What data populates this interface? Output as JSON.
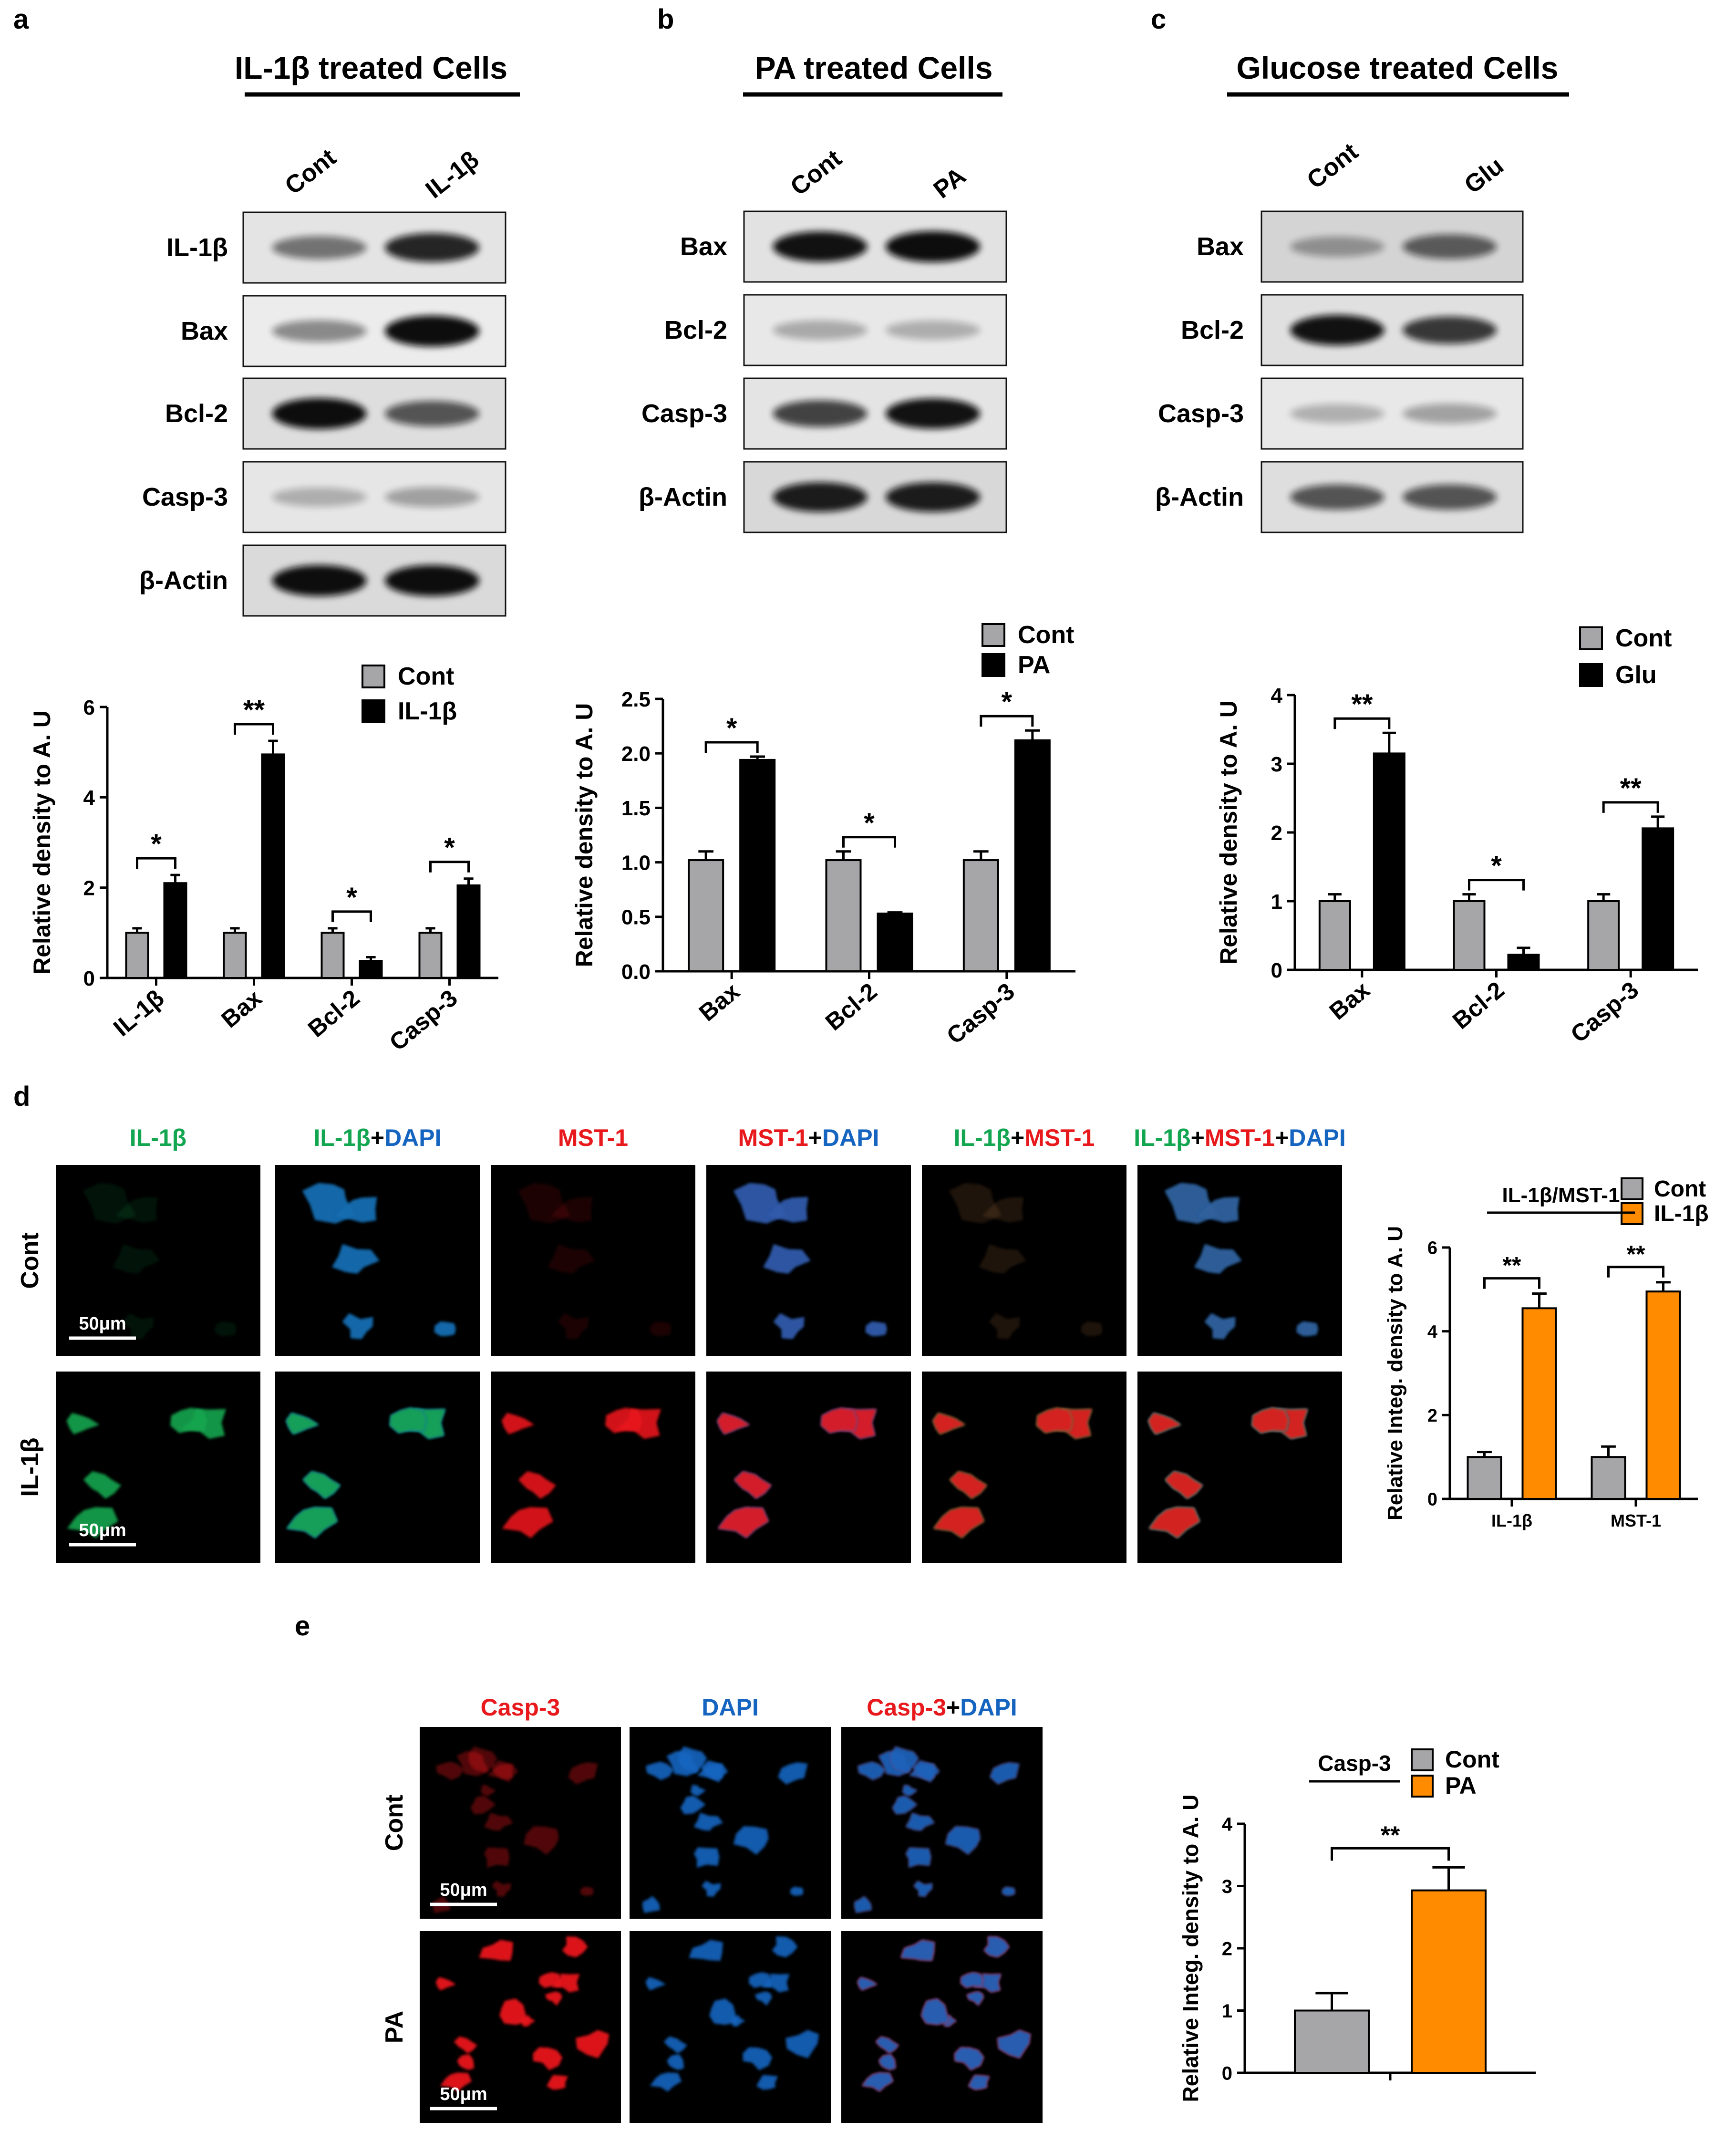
{
  "panel_letters": [
    "a",
    "b",
    "c",
    "d",
    "e"
  ],
  "blots": [
    {
      "title": "IL-1β treated Cells",
      "lanes": [
        "Cont",
        "IL-1β"
      ],
      "bands": [
        "IL-1β",
        "Bax",
        "Bcl-2",
        "Casp-3",
        "β-Actin"
      ]
    },
    {
      "title": "PA treated Cells",
      "lanes": [
        "Cont",
        "PA"
      ],
      "bands": [
        "Bax",
        "Bcl-2",
        "Casp-3",
        "β-Actin"
      ]
    },
    {
      "title": "Glucose treated Cells",
      "lanes": [
        "Cont",
        "Glu"
      ],
      "bands": [
        "Bax",
        "Bcl-2",
        "Casp-3",
        "β-Actin"
      ]
    }
  ],
  "colors": {
    "cont_gray": "#a6a6a8",
    "treat_black": "#000000",
    "treat_orange": "#ff8b00",
    "green": "#12a650",
    "red": "#e8191c",
    "blue": "#1565c0"
  },
  "panel_d": {
    "columns": [
      [
        {
          "t": "IL-1β",
          "c": "green"
        }
      ],
      [
        {
          "t": "IL-1β",
          "c": "green"
        },
        {
          "t": "+",
          "c": "black"
        },
        {
          "t": "DAPI",
          "c": "blue"
        }
      ],
      [
        {
          "t": "MST-1",
          "c": "red"
        }
      ],
      [
        {
          "t": "MST-1",
          "c": "red"
        },
        {
          "t": "+",
          "c": "black"
        },
        {
          "t": "DAPI",
          "c": "blue"
        }
      ],
      [
        {
          "t": "IL-1β",
          "c": "green"
        },
        {
          "t": "+",
          "c": "black"
        },
        {
          "t": "MST-1",
          "c": "red"
        }
      ],
      [
        {
          "t": "IL-1β",
          "c": "green"
        },
        {
          "t": "+",
          "c": "black"
        },
        {
          "t": "MST-1",
          "c": "red"
        },
        {
          "t": "+",
          "c": "black"
        },
        {
          "t": "DAPI",
          "c": "blue"
        }
      ]
    ],
    "rows": [
      "Cont",
      "IL-1β"
    ],
    "scale_bar": "50μm"
  },
  "panel_e": {
    "columns": [
      [
        {
          "t": "Casp-3",
          "c": "red"
        }
      ],
      [
        {
          "t": "DAPI",
          "c": "blue"
        }
      ],
      [
        {
          "t": "Casp-3",
          "c": "red"
        },
        {
          "t": "+",
          "c": "black"
        },
        {
          "t": "DAPI",
          "c": "blue"
        }
      ]
    ],
    "rows": [
      "Cont",
      "PA"
    ],
    "scale_bar": "50μm"
  },
  "chart_data": [
    {
      "type": "bar",
      "categories": [
        "IL-1β",
        "Bax",
        "Bcl-2",
        "Casp-3"
      ],
      "series": [
        {
          "name": "Cont",
          "values": [
            1.0,
            1.0,
            1.0,
            1.0
          ],
          "errors": [
            0.1,
            0.1,
            0.1,
            0.1
          ]
        },
        {
          "name": "IL-1β",
          "values": [
            2.1,
            4.95,
            0.38,
            2.05
          ],
          "errors": [
            0.18,
            0.3,
            0.08,
            0.15
          ]
        }
      ],
      "significance": [
        "*",
        "**",
        "*",
        "*"
      ],
      "ylabel": "Relative density to A. U",
      "ylim": [
        0,
        6
      ],
      "yticks": [
        "0",
        "2",
        "4",
        "6"
      ]
    },
    {
      "type": "bar",
      "categories": [
        "Bax",
        "Bcl-2",
        "Casp-3"
      ],
      "series": [
        {
          "name": "Cont",
          "values": [
            1.02,
            1.02,
            1.02
          ],
          "errors": [
            0.08,
            0.08,
            0.08
          ]
        },
        {
          "name": "PA",
          "values": [
            1.94,
            0.53,
            2.12
          ],
          "errors": [
            0.03,
            0.01,
            0.09
          ]
        }
      ],
      "significance": [
        "*",
        "*",
        "*"
      ],
      "ylabel": "Relative density to A. U",
      "ylim": [
        0,
        2.5
      ],
      "yticks": [
        "0.0",
        "0.5",
        "1.0",
        "1.5",
        "2.0",
        "2.5"
      ]
    },
    {
      "type": "bar",
      "categories": [
        "Bax",
        "Bcl-2",
        "Casp-3"
      ],
      "series": [
        {
          "name": "Cont",
          "values": [
            1.0,
            1.0,
            1.0
          ],
          "errors": [
            0.1,
            0.1,
            0.1
          ]
        },
        {
          "name": "Glu",
          "values": [
            3.15,
            0.22,
            2.06
          ],
          "errors": [
            0.3,
            0.1,
            0.17
          ]
        }
      ],
      "significance": [
        "**",
        "*",
        "**"
      ],
      "ylabel": "Relative density to A. U",
      "ylim": [
        0,
        4
      ],
      "yticks": [
        "0",
        "1",
        "2",
        "3",
        "4"
      ]
    },
    {
      "type": "bar",
      "title": "IL-1β/MST-1",
      "categories": [
        "IL-1β",
        "MST-1"
      ],
      "series": [
        {
          "name": "Cont",
          "values": [
            1.0,
            1.0
          ],
          "errors": [
            0.12,
            0.25
          ]
        },
        {
          "name": "IL-1β",
          "values": [
            4.55,
            4.95
          ],
          "errors": [
            0.35,
            0.22
          ]
        }
      ],
      "significance": [
        "**",
        "**"
      ],
      "ylabel": "Relative Integ. density to A. U",
      "ylim": [
        0,
        6
      ],
      "yticks": [
        "0",
        "2",
        "4",
        "6"
      ]
    },
    {
      "type": "bar",
      "title": "Casp-3",
      "categories": [
        ""
      ],
      "series": [
        {
          "name": "Cont",
          "values": [
            1.0
          ],
          "errors": [
            0.28
          ]
        },
        {
          "name": "PA",
          "values": [
            2.93
          ],
          "errors": [
            0.37
          ]
        }
      ],
      "significance": [
        "**"
      ],
      "ylabel": "Relative Integ. density to A. U",
      "ylim": [
        0,
        4
      ],
      "yticks": [
        "0",
        "1",
        "2",
        "3",
        "4"
      ]
    }
  ]
}
